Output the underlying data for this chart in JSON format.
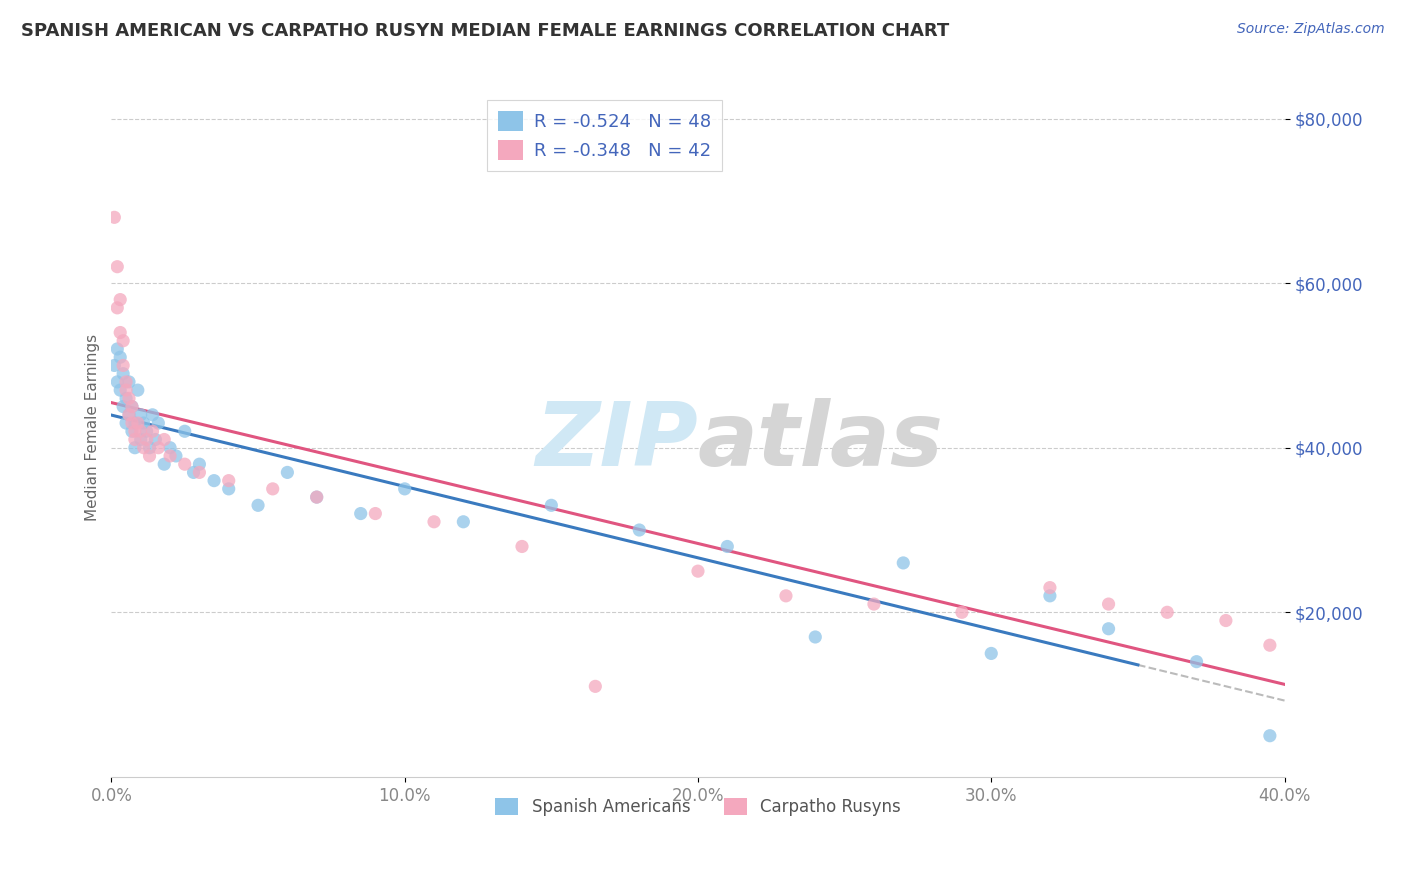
{
  "title": "SPANISH AMERICAN VS CARPATHO RUSYN MEDIAN FEMALE EARNINGS CORRELATION CHART",
  "source": "Source: ZipAtlas.com",
  "ylabel": "Median Female Earnings",
  "xlabel": "",
  "xlim": [
    0.0,
    0.4
  ],
  "ylim": [
    0,
    85000
  ],
  "yticks": [
    20000,
    40000,
    60000,
    80000
  ],
  "ytick_labels": [
    "$20,000",
    "$40,000",
    "$60,000",
    "$80,000"
  ],
  "xticks": [
    0.0,
    0.1,
    0.2,
    0.3,
    0.4
  ],
  "xtick_labels": [
    "0.0%",
    "10.0%",
    "20.0%",
    "30.0%",
    "40.0%"
  ],
  "legend_labels": [
    "Spanish Americans",
    "Carpatho Rusyns"
  ],
  "legend_r1": "R = -0.524",
  "legend_n1": "N = 48",
  "legend_r2": "R = -0.348",
  "legend_n2": "N = 42",
  "color_blue": "#8ec4e8",
  "color_pink": "#f4a8be",
  "color_blue_line": "#3a7abf",
  "color_pink_line": "#e05580",
  "color_gray_dashed": "#bbbbbb",
  "watermark_color_zip": "#d0e8f5",
  "watermark_color_atlas": "#d5d5d5",
  "title_color": "#333333",
  "axis_color": "#4466bb",
  "tick_color": "#888888",
  "spanish_x": [
    0.001,
    0.002,
    0.002,
    0.003,
    0.003,
    0.004,
    0.004,
    0.005,
    0.005,
    0.006,
    0.006,
    0.007,
    0.007,
    0.008,
    0.008,
    0.009,
    0.01,
    0.01,
    0.011,
    0.012,
    0.013,
    0.014,
    0.015,
    0.016,
    0.018,
    0.02,
    0.022,
    0.025,
    0.028,
    0.03,
    0.035,
    0.04,
    0.05,
    0.06,
    0.07,
    0.085,
    0.1,
    0.12,
    0.15,
    0.18,
    0.21,
    0.24,
    0.27,
    0.3,
    0.32,
    0.34,
    0.37,
    0.395
  ],
  "spanish_y": [
    50000,
    52000,
    48000,
    47000,
    51000,
    45000,
    49000,
    46000,
    43000,
    48000,
    44000,
    42000,
    45000,
    43000,
    40000,
    47000,
    44000,
    41000,
    43000,
    42000,
    40000,
    44000,
    41000,
    43000,
    38000,
    40000,
    39000,
    42000,
    37000,
    38000,
    36000,
    35000,
    33000,
    37000,
    34000,
    32000,
    35000,
    31000,
    33000,
    30000,
    28000,
    17000,
    26000,
    15000,
    22000,
    18000,
    14000,
    5000
  ],
  "rusyn_x": [
    0.001,
    0.002,
    0.002,
    0.003,
    0.003,
    0.004,
    0.004,
    0.005,
    0.005,
    0.006,
    0.006,
    0.007,
    0.007,
    0.008,
    0.008,
    0.009,
    0.01,
    0.011,
    0.012,
    0.013,
    0.014,
    0.016,
    0.018,
    0.02,
    0.025,
    0.03,
    0.04,
    0.055,
    0.07,
    0.09,
    0.11,
    0.14,
    0.165,
    0.2,
    0.23,
    0.26,
    0.29,
    0.32,
    0.34,
    0.36,
    0.38,
    0.395
  ],
  "rusyn_y": [
    68000,
    62000,
    57000,
    54000,
    58000,
    50000,
    53000,
    48000,
    47000,
    46000,
    44000,
    43000,
    45000,
    42000,
    41000,
    43000,
    42000,
    40000,
    41000,
    39000,
    42000,
    40000,
    41000,
    39000,
    38000,
    37000,
    36000,
    35000,
    34000,
    32000,
    31000,
    28000,
    11000,
    25000,
    22000,
    21000,
    20000,
    23000,
    21000,
    20000,
    19000,
    16000
  ]
}
